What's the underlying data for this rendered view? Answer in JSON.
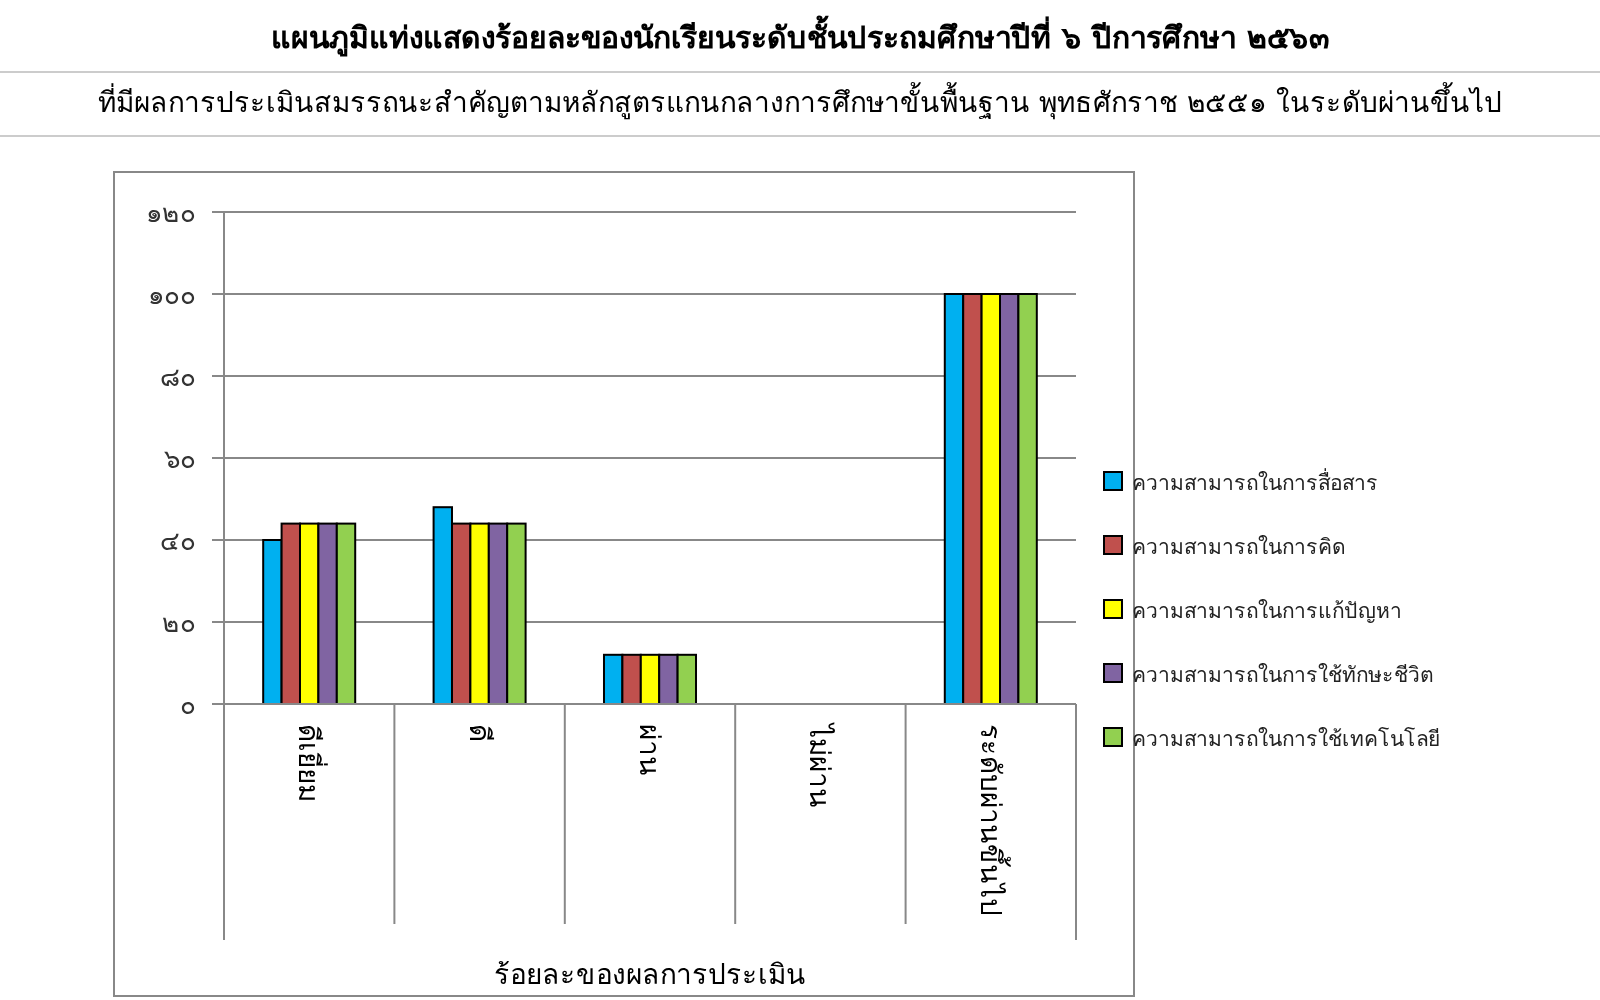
{
  "chart_data": {
    "type": "bar",
    "title": "แผนภูมิแท่งแสดงร้อยละของนักเรียนระดับชั้นประถมศึกษาปีที่ ๖ ปีการศึกษา ๒๕๖๓",
    "subtitle": "ที่มีผลการประเมินสมรรถนะสำคัญตามหลักสูตรแกนกลางการศึกษาขั้นพื้นฐาน พุทธศักราช ๒๕๕๑ ในระดับผ่านขึ้นไป",
    "xlabel": "ร้อยละของผลการประเมิน",
    "categories": [
      "ดีเยี่ยม",
      "ดี",
      "ผ่าน",
      "ไม่ผ่าน",
      "ระดับผ่านขึ้นไป"
    ],
    "series": [
      {
        "name": "ความสามารถในการสื่อสาร",
        "color": "#00b0f0",
        "values": [
          40,
          48,
          12,
          0,
          100
        ]
      },
      {
        "name": "ความสามารถในการคิด",
        "color": "#c0504d",
        "values": [
          44,
          44,
          12,
          0,
          100
        ]
      },
      {
        "name": "ความสามารถในการแก้ปัญหา",
        "color": "#ffff00",
        "values": [
          44,
          44,
          12,
          0,
          100
        ]
      },
      {
        "name": "ความสามารถในการใช้ทักษะชีวิต",
        "color": "#8064a2",
        "values": [
          44,
          44,
          12,
          0,
          100
        ]
      },
      {
        "name": "ความสามารถในการใช้เทคโนโลยี",
        "color": "#92d050",
        "values": [
          44,
          44,
          12,
          0,
          100
        ]
      }
    ],
    "ylim": [
      0,
      120
    ],
    "yticks": [
      {
        "value": 0,
        "label": "๐"
      },
      {
        "value": 20,
        "label": "๒๐"
      },
      {
        "value": 40,
        "label": "๔๐"
      },
      {
        "value": 60,
        "label": "๖๐"
      },
      {
        "value": 80,
        "label": "๘๐"
      },
      {
        "value": 100,
        "label": "๑๐๐"
      },
      {
        "value": 120,
        "label": "๑๒๐"
      }
    ],
    "grid": "y",
    "legend": "right"
  }
}
